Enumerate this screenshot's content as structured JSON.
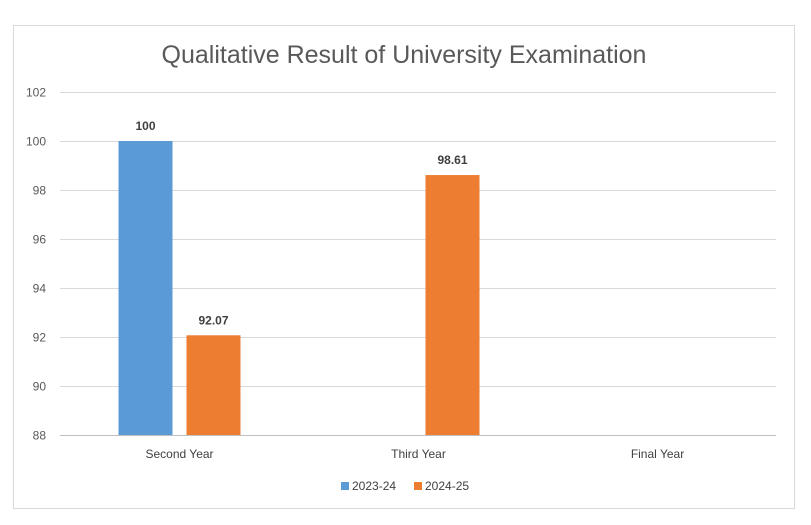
{
  "chart_data": {
    "type": "bar",
    "title": "Qualitative Result of University Examination",
    "xlabel": "",
    "ylabel": "",
    "categories": [
      "Second Year",
      "Third Year",
      "Final Year"
    ],
    "series": [
      {
        "name": "2023-24",
        "color": "#5b9bd5",
        "values": [
          100,
          null,
          null
        ]
      },
      {
        "name": "2024-25",
        "color": "#ed7d31",
        "values": [
          92.07,
          98.61,
          null
        ]
      }
    ],
    "data_labels": [
      [
        "100",
        null,
        null
      ],
      [
        "92.07",
        "98.61",
        null
      ]
    ],
    "ylim": [
      88,
      102
    ],
    "yticks": [
      88,
      90,
      92,
      94,
      96,
      98,
      100,
      102
    ],
    "grid": true,
    "legend_position": "bottom"
  }
}
